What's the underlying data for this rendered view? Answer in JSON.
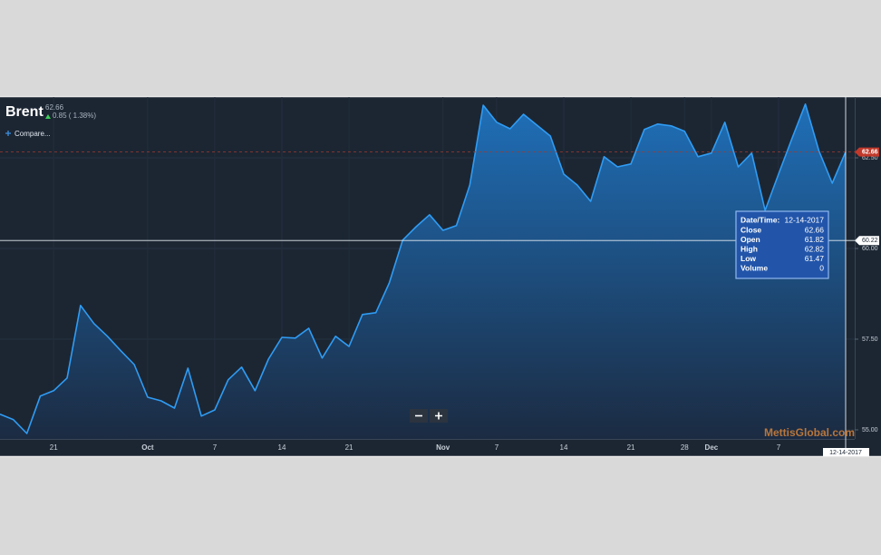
{
  "chart_data": {
    "type": "area",
    "title": "Brent",
    "last_price": 62.66,
    "change": "0.85 ( 1.38%)",
    "compare_label": "Compare...",
    "categories": [
      null,
      null,
      null,
      null,
      "21",
      null,
      null,
      null,
      null,
      null,
      null,
      "Oct",
      null,
      null,
      null,
      null,
      "7",
      null,
      null,
      null,
      null,
      "14",
      null,
      null,
      null,
      null,
      "21",
      null,
      null,
      null,
      null,
      null,
      null,
      "Nov",
      null,
      null,
      null,
      "7",
      null,
      null,
      null,
      null,
      "14",
      null,
      null,
      null,
      null,
      "21",
      null,
      null,
      null,
      "28",
      null,
      "Dec",
      null,
      null,
      null,
      null,
      "7",
      null,
      null,
      null,
      null,
      null
    ],
    "values": [
      55.43,
      55.28,
      54.9,
      55.93,
      56.08,
      56.43,
      58.43,
      57.93,
      57.58,
      57.18,
      56.8,
      55.9,
      55.8,
      55.6,
      56.7,
      55.38,
      55.55,
      56.38,
      56.73,
      56.08,
      56.95,
      57.55,
      57.53,
      57.8,
      56.98,
      57.58,
      57.3,
      58.18,
      58.23,
      59.05,
      60.23,
      60.6,
      60.93,
      60.5,
      60.63,
      61.75,
      63.95,
      63.48,
      63.3,
      63.7,
      63.4,
      63.1,
      62.05,
      61.75,
      61.3,
      62.53,
      62.25,
      62.33,
      63.28,
      63.43,
      63.38,
      63.23,
      62.53,
      62.63,
      63.48,
      62.25,
      62.63,
      61.05,
      62.05,
      63.03,
      63.98,
      62.7,
      61.8,
      62.66
    ],
    "color": "#2f9cf4",
    "ylim": [
      54.75,
      64.15
    ],
    "yticks": [
      {
        "value": 55,
        "label": "55.00"
      },
      {
        "value": 57.5,
        "label": "57.50"
      },
      {
        "value": 60,
        "label": "60.00"
      },
      {
        "value": 62.5,
        "label": "62.50"
      }
    ],
    "grid": true,
    "price_tag": 62.66,
    "crosshair_value": 60.22,
    "crosshair_date": "12-14-2017",
    "tooltip": {
      "date_label": "Date/Time:",
      "date": "12-14-2017",
      "rows": [
        {
          "label": "Close",
          "value": 62.66
        },
        {
          "label": "Open",
          "value": 61.82
        },
        {
          "label": "High",
          "value": 62.82
        },
        {
          "label": "Low",
          "value": 61.47
        },
        {
          "label": "Volume",
          "value": 0
        }
      ]
    },
    "watermark": "MettisGlobal.com"
  }
}
